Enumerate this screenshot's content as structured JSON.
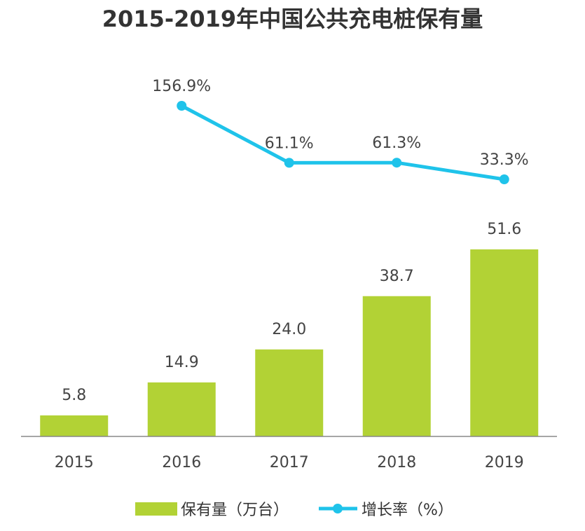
{
  "chart_data": {
    "type": "bar",
    "title": "2015-2019年中国公共充电桩保有量",
    "categories": [
      "2015",
      "2016",
      "2017",
      "2018",
      "2019"
    ],
    "series": [
      {
        "name": "保有量（万台）",
        "type": "bar",
        "color": "#b2d235",
        "values": [
          5.8,
          14.9,
          24.0,
          38.7,
          51.6
        ],
        "labels": [
          "5.8",
          "14.9",
          "24.0",
          "38.7",
          "51.6"
        ]
      },
      {
        "name": "增长率（%）",
        "type": "line",
        "color": "#1fc3ea",
        "values": [
          null,
          156.9,
          61.1,
          61.3,
          33.3
        ],
        "labels": [
          "",
          "156.9%",
          "61.1%",
          "61.3%",
          "33.3%"
        ]
      }
    ],
    "legend_position": "bottom",
    "grid": false
  }
}
